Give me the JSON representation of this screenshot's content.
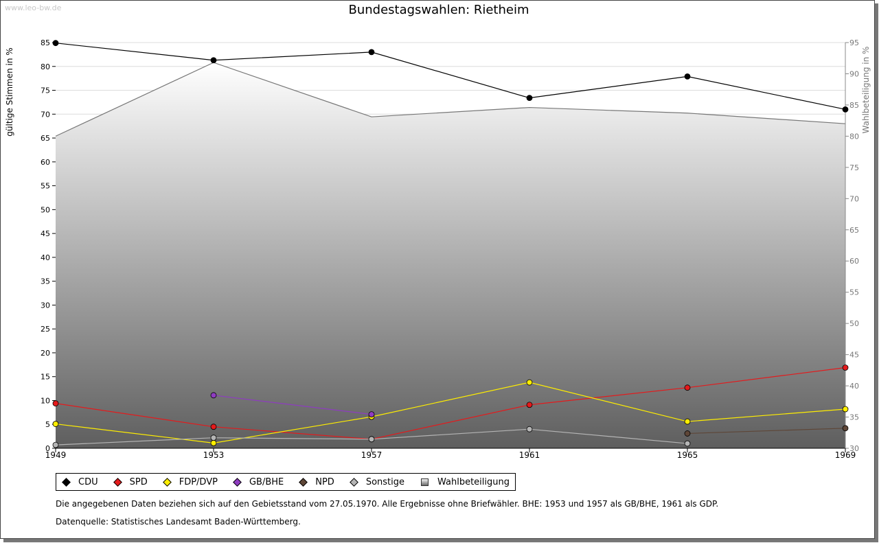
{
  "site": {
    "watermark": "www.leo-bw.de"
  },
  "chart_data": {
    "type": "line",
    "title": "Bundestagswahlen: Rietheim",
    "ylabel": "gültige Stimmen in %",
    "y2label": "Wahlbeteiligung in %",
    "xlabel": "",
    "categories": [
      "1949",
      "1953",
      "1957",
      "1961",
      "1965",
      "1969"
    ],
    "ylim": [
      0,
      85
    ],
    "yticks": [
      0,
      5,
      10,
      15,
      20,
      25,
      30,
      35,
      40,
      45,
      50,
      55,
      60,
      65,
      70,
      75,
      80,
      85
    ],
    "y2lim": [
      30,
      95
    ],
    "y2ticks": [
      30,
      35,
      40,
      45,
      50,
      55,
      60,
      65,
      70,
      75,
      80,
      85,
      90,
      95
    ],
    "grid": true,
    "legend_position": "bottom-left",
    "series": [
      {
        "name": "CDU",
        "color": "#000000",
        "values": [
          84.9,
          81.3,
          83.0,
          73.4,
          77.9,
          71.0
        ]
      },
      {
        "name": "SPD",
        "color": "#e41a1c",
        "values": [
          9.4,
          4.5,
          1.9,
          9.1,
          12.7,
          16.9
        ]
      },
      {
        "name": "FDP/DVP",
        "color": "#ffee00",
        "values": [
          5.1,
          1.1,
          6.6,
          13.8,
          5.6,
          8.2
        ]
      },
      {
        "name": "GB/BHE",
        "color": "#8e3cc0",
        "values": [
          null,
          11.1,
          7.1,
          null,
          null,
          null
        ]
      },
      {
        "name": "NPD",
        "color": "#5e4637",
        "values": [
          null,
          null,
          null,
          null,
          3.1,
          4.2
        ]
      },
      {
        "name": "Sonstige",
        "color": "#b5b5b5",
        "values": [
          0.7,
          2.2,
          1.9,
          4.0,
          1.0,
          null
        ]
      }
    ],
    "turnout": {
      "name": "Wahlbeteiligung",
      "axis": "right",
      "values": [
        80.0,
        91.8,
        83.1,
        84.6,
        83.7,
        82.0
      ]
    }
  },
  "notes": {
    "text": "Die angegebenen Daten beziehen sich auf den Gebietsstand vom 27.05.1970. Alle Ergebnisse ohne Briefwähler. BHE: 1953 und 1957 als GB/BHE, 1961 als GDP.",
    "source": "Datenquelle: Statistisches Landesamt Baden-Württemberg."
  }
}
